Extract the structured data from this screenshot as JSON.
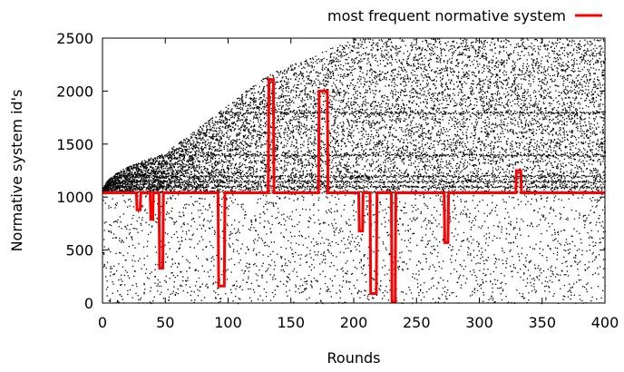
{
  "chart_data": {
    "type": "scatter",
    "title": "",
    "xlabel": "Rounds",
    "ylabel": "Normative system id's",
    "xlim": [
      0,
      400
    ],
    "ylim": [
      0,
      2500
    ],
    "xticks": [
      0,
      50,
      100,
      150,
      200,
      250,
      300,
      350,
      400
    ],
    "yticks": [
      0,
      500,
      1000,
      1500,
      2000,
      2500
    ],
    "xtick_labels": [
      "0",
      "50",
      "100",
      "150",
      "200",
      "250",
      "300",
      "350",
      "400"
    ],
    "ytick_labels": [
      "0",
      "500",
      "1000",
      "1500",
      "2000",
      "2500"
    ],
    "grid": false,
    "legend": {
      "position": "top-right"
    },
    "series": [
      {
        "name": "",
        "type": "scatter",
        "color": "#000000",
        "description_points": "dense random black dots; lower bound near 1050, upper bound growing from 1050 at x=0 to about 2500 by x=200",
        "dense_bands": [
          1050,
          1100,
          1150,
          1200,
          1400,
          1800
        ]
      },
      {
        "name": "most frequent normative system",
        "type": "line",
        "color": "#ff0000",
        "baseline": 1040,
        "x": [
          0,
          27,
          27.5,
          28,
          30,
          30.5,
          31,
          38,
          38.5,
          40,
          40.5,
          41,
          45,
          45.5,
          48,
          48.5,
          49,
          92,
          92.5,
          97,
          97.5,
          98,
          132,
          132.5,
          136,
          136.5,
          137,
          172,
          172.5,
          179,
          179.5,
          180,
          204,
          204.5,
          207,
          207.5,
          208,
          213,
          213.5,
          218,
          218.5,
          219,
          230,
          230.5,
          233,
          233.5,
          234,
          272,
          272.5,
          275,
          275.5,
          276,
          329,
          329.5,
          333,
          333.5,
          334,
          400
        ],
        "y": [
          1040,
          1040,
          880,
          880,
          880,
          1040,
          1040,
          1040,
          790,
          790,
          1040,
          1040,
          1040,
          330,
          330,
          1040,
          1040,
          1040,
          160,
          160,
          1040,
          1040,
          1040,
          2110,
          2110,
          1040,
          1040,
          1040,
          2000,
          2000,
          1040,
          1040,
          1040,
          680,
          680,
          1040,
          1040,
          1040,
          90,
          90,
          1040,
          1040,
          1040,
          10,
          10,
          1040,
          1040,
          1040,
          570,
          570,
          1040,
          1040,
          1040,
          1250,
          1250,
          1040,
          1040,
          1040
        ]
      }
    ]
  }
}
